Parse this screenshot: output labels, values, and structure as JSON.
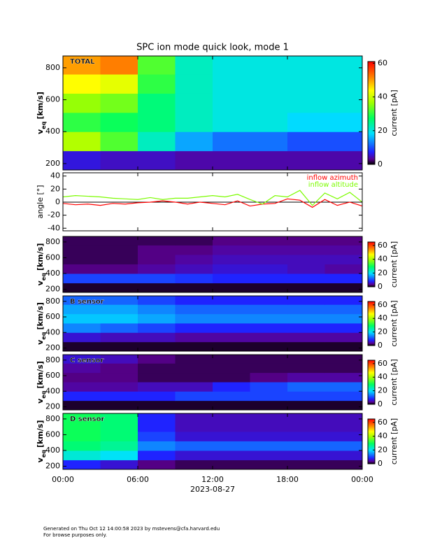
{
  "chart_data": [
    {
      "type": "heatmap",
      "title": "SPC ion mode quick look, mode 1",
      "label": "TOTAL",
      "ylabel": {
        "main": "v",
        "sub": "eq",
        "unit": "[km/s]"
      },
      "ylim": [
        160,
        874
      ],
      "yticks": [
        200,
        400,
        600,
        800
      ],
      "time_bins": [
        0,
        3,
        6,
        9,
        12,
        15,
        18,
        21,
        24
      ],
      "velocity_bins": [
        160,
        280,
        400,
        520,
        640,
        760,
        880
      ],
      "values": [
        [
          6,
          5,
          5,
          4,
          4,
          4,
          4,
          4
        ],
        [
          38,
          32,
          22,
          15,
          12,
          12,
          10,
          10
        ],
        [
          30,
          28,
          26,
          22,
          20,
          20,
          18,
          18
        ],
        [
          36,
          34,
          26,
          22,
          20,
          20,
          20,
          20
        ],
        [
          44,
          42,
          30,
          22,
          20,
          20,
          20,
          20
        ],
        [
          50,
          52,
          32,
          22,
          20,
          20,
          20,
          20
        ]
      ],
      "clim": [
        0,
        61
      ],
      "cticks": [
        0,
        20,
        40,
        60
      ],
      "clabel": "current [pA]"
    },
    {
      "type": "line",
      "ylabel": "angle [°]",
      "ylim": [
        -44,
        45
      ],
      "yticks": [
        -40,
        -20,
        0,
        20,
        40
      ],
      "ref_line": 0,
      "legend": "upper right",
      "x": [
        0,
        1,
        2,
        3,
        4,
        5,
        6,
        7,
        8,
        9,
        10,
        11,
        12,
        13,
        14,
        15,
        16,
        17,
        18,
        19,
        20,
        21,
        22,
        23,
        24
      ],
      "series": [
        {
          "name": "inflow azimuth",
          "color": "#ff0000",
          "values": [
            -2,
            -4,
            -3,
            -5,
            -2,
            -3,
            -1,
            0,
            2,
            0,
            -3,
            0,
            -2,
            -4,
            2,
            -6,
            -3,
            -2,
            5,
            3,
            -8,
            4,
            -5,
            0,
            -6
          ]
        },
        {
          "name": "inflow altitude",
          "color": "#7cfc00",
          "values": [
            8,
            10,
            9,
            8,
            6,
            5,
            4,
            7,
            4,
            6,
            6,
            8,
            10,
            8,
            12,
            4,
            -3,
            10,
            8,
            18,
            -5,
            14,
            5,
            15,
            0
          ]
        }
      ]
    },
    {
      "type": "heatmap",
      "ylabel": {
        "main": "v",
        "sub": "eq",
        "unit": "[km/s]"
      },
      "ylim": [
        160,
        870
      ],
      "yticks": [
        200,
        400,
        600,
        800
      ],
      "time_bins": [
        0,
        3,
        6,
        9,
        12,
        15,
        18,
        21,
        24
      ],
      "velocity_bins": [
        160,
        280,
        400,
        520,
        640,
        760,
        880
      ],
      "values": [
        [
          1,
          1,
          1,
          1,
          1,
          1,
          1,
          1
        ],
        [
          10,
          10,
          10,
          9,
          8,
          8,
          8,
          8
        ],
        [
          3,
          3,
          4,
          5,
          6,
          6,
          5,
          4
        ],
        [
          2,
          2,
          3,
          4,
          5,
          5,
          5,
          5
        ],
        [
          2,
          2,
          3,
          3,
          4,
          4,
          4,
          4
        ],
        [
          2,
          2,
          2,
          2,
          3,
          3,
          3,
          3
        ]
      ],
      "clim": [
        0,
        65
      ],
      "cticks": [
        0,
        20,
        40,
        60
      ],
      "clabel": "current [pA]"
    },
    {
      "type": "heatmap",
      "label": "B sensor",
      "ylabel": {
        "main": "v",
        "sub": "eq",
        "unit": "[km/s]"
      },
      "ylim": [
        160,
        870
      ],
      "yticks": [
        200,
        400,
        600,
        800
      ],
      "time_bins": [
        0,
        3,
        6,
        9,
        12,
        15,
        18,
        21,
        24
      ],
      "velocity_bins": [
        160,
        280,
        400,
        520,
        640,
        760,
        880
      ],
      "values": [
        [
          1,
          1,
          1,
          1,
          1,
          1,
          1,
          1
        ],
        [
          6,
          5,
          5,
          4,
          4,
          4,
          4,
          4
        ],
        [
          14,
          12,
          10,
          8,
          8,
          8,
          8,
          8
        ],
        [
          18,
          18,
          16,
          14,
          14,
          14,
          14,
          14
        ],
        [
          16,
          16,
          14,
          12,
          12,
          12,
          12,
          12
        ],
        [
          12,
          12,
          10,
          8,
          8,
          8,
          8,
          8
        ]
      ],
      "clim": [
        0,
        65
      ],
      "cticks": [
        0,
        20,
        40,
        60
      ],
      "clabel": "current [pA]"
    },
    {
      "type": "heatmap",
      "label": "C sensor",
      "ylabel": {
        "main": "v",
        "sub": "eq",
        "unit": "[km/s]"
      },
      "ylim": [
        160,
        870
      ],
      "yticks": [
        200,
        400,
        600,
        800
      ],
      "time_bins": [
        0,
        3,
        6,
        9,
        12,
        15,
        18,
        21,
        24
      ],
      "velocity_bins": [
        160,
        280,
        400,
        520,
        640,
        760,
        880
      ],
      "values": [
        [
          1,
          1,
          1,
          1,
          1,
          1,
          1,
          1
        ],
        [
          8,
          8,
          8,
          10,
          10,
          10,
          10,
          10
        ],
        [
          4,
          4,
          5,
          5,
          8,
          10,
          12,
          12
        ],
        [
          3,
          3,
          2,
          2,
          2,
          3,
          4,
          4
        ],
        [
          4,
          3,
          2,
          2,
          2,
          2,
          2,
          2
        ],
        [
          6,
          5,
          3,
          2,
          2,
          2,
          2,
          2
        ]
      ],
      "clim": [
        0,
        65
      ],
      "cticks": [
        0,
        20,
        40,
        60
      ],
      "clabel": "current [pA]"
    },
    {
      "type": "heatmap",
      "label": "D sensor",
      "ylabel": {
        "main": "v",
        "sub": "eq",
        "unit": "[km/s]"
      },
      "ylim": [
        160,
        870
      ],
      "yticks": [
        200,
        400,
        600,
        800
      ],
      "time_bins": [
        0,
        3,
        6,
        9,
        12,
        15,
        18,
        21,
        24
      ],
      "velocity_bins": [
        160,
        280,
        400,
        520,
        640,
        760,
        880
      ],
      "values": [
        [
          8,
          6,
          3,
          2,
          2,
          2,
          2,
          2
        ],
        [
          22,
          20,
          8,
          6,
          6,
          6,
          6,
          6
        ],
        [
          28,
          26,
          14,
          12,
          12,
          12,
          12,
          12
        ],
        [
          30,
          28,
          10,
          6,
          6,
          6,
          6,
          6
        ],
        [
          30,
          28,
          8,
          5,
          5,
          5,
          5,
          5
        ],
        [
          30,
          28,
          8,
          5,
          5,
          5,
          5,
          5
        ]
      ],
      "clim": [
        0,
        65
      ],
      "cticks": [
        0,
        20,
        40,
        60
      ],
      "clabel": "current [pA]",
      "xlim": [
        0,
        24
      ],
      "xlabel": "2023-08-27",
      "xticks": [
        {
          "value": 0,
          "label": "00:00"
        },
        {
          "value": 6,
          "label": "06:00"
        },
        {
          "value": 12,
          "label": "12:00"
        },
        {
          "value": 18,
          "label": "18:00"
        },
        {
          "value": 24,
          "label": "00:00"
        }
      ]
    }
  ],
  "footer": [
    "Generated on Thu Oct 12 14:00:58 2023 by mstevens@cfa.harvard.edu",
    "For browse purposes only."
  ]
}
